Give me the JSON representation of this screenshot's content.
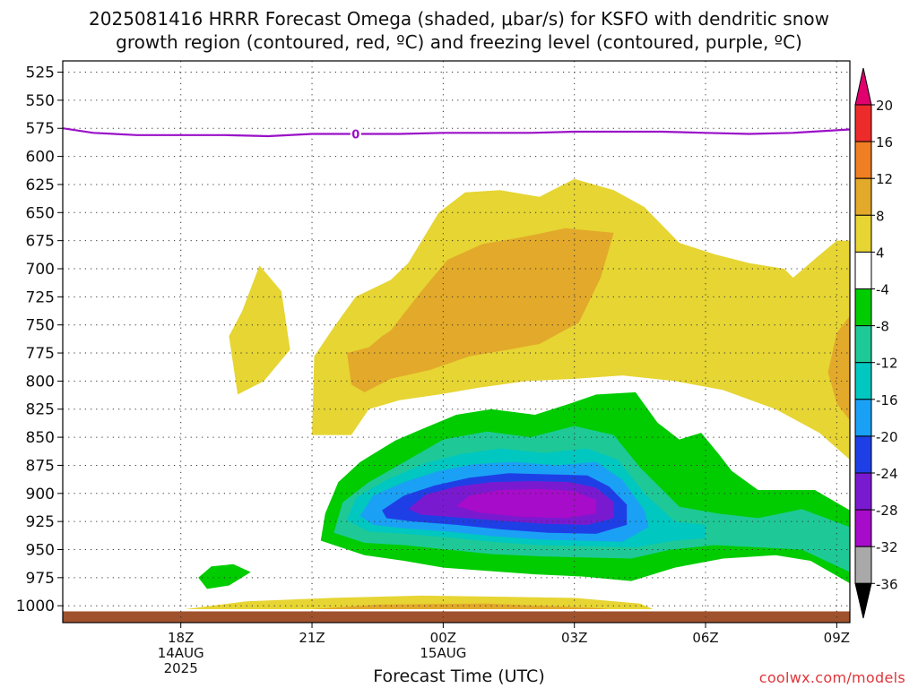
{
  "title": {
    "line1": "2025081416 HRRR Forecast Omega (shaded, μbar/s) for KSFO with dendritic snow",
    "line2": "growth region (contoured, red, ºC) and freezing level (contoured, purple, ºC)"
  },
  "credit": "coolwx.com/models",
  "chart_data": {
    "type": "heatmap",
    "xlabel": "Forecast Time (UTC)",
    "ylabel": "",
    "x_range_hours": [
      15.3,
      33.3
    ],
    "y_range_mb": [
      515,
      1015
    ],
    "y_ticks": [
      525,
      550,
      575,
      600,
      625,
      650,
      675,
      700,
      725,
      750,
      775,
      800,
      825,
      850,
      875,
      900,
      925,
      950,
      975,
      1000
    ],
    "x_ticks": [
      {
        "hour": 18,
        "lines": [
          "18Z",
          "14AUG",
          "2025"
        ]
      },
      {
        "hour": 21,
        "lines": [
          "21Z"
        ]
      },
      {
        "hour": 24,
        "lines": [
          "00Z",
          "15AUG"
        ]
      },
      {
        "hour": 27,
        "lines": [
          "03Z"
        ]
      },
      {
        "hour": 30,
        "lines": [
          "06Z"
        ]
      },
      {
        "hour": 33,
        "lines": [
          "09Z"
        ]
      }
    ],
    "grid": true,
    "colorbar": {
      "labels": [
        "20",
        "16",
        "12",
        "8",
        "4",
        "-4",
        "-8",
        "-12",
        "-16",
        "-20",
        "-24",
        "-28",
        "-32",
        "-36"
      ],
      "colors": [
        "#e0006e",
        "#ee2b2b",
        "#f07e22",
        "#e3a92a",
        "#e6d533",
        "#ffffff",
        "#00cc00",
        "#1ec997",
        "#00c7c0",
        "#1aa1f5",
        "#1f3fe6",
        "#7a1ad0",
        "#a60cc9",
        "#a9a9a9",
        "#000000"
      ]
    },
    "levels": [
      {
        "range": "4 to 8",
        "color": "#e6d533",
        "polygons": [
          [
            [
              19.8,
              697
            ],
            [
              20.3,
              720
            ],
            [
              20.5,
              772
            ],
            [
              19.9,
              800
            ],
            [
              19.3,
              812
            ],
            [
              19.1,
              760
            ],
            [
              19.4,
              738
            ]
          ],
          [
            [
              21.0,
              848
            ],
            [
              21.05,
              778
            ],
            [
              21.5,
              752
            ],
            [
              22.0,
              725
            ],
            [
              22.8,
              710
            ],
            [
              23.2,
              695
            ],
            [
              23.9,
              650
            ],
            [
              24.5,
              632
            ],
            [
              25.3,
              630
            ],
            [
              26.2,
              636
            ],
            [
              27.0,
              620
            ],
            [
              27.9,
              630
            ],
            [
              28.6,
              645
            ],
            [
              29.4,
              677
            ],
            [
              30.2,
              687
            ],
            [
              31.0,
              695
            ],
            [
              31.8,
              700
            ],
            [
              32.0,
              708
            ],
            [
              32.6,
              688
            ],
            [
              33.0,
              675
            ],
            [
              33.3,
              675
            ],
            [
              33.3,
              870
            ],
            [
              32.6,
              846
            ],
            [
              31.6,
              825
            ],
            [
              30.4,
              808
            ],
            [
              29.3,
              800
            ],
            [
              28.1,
              795
            ],
            [
              27.0,
              798
            ],
            [
              25.9,
              800
            ],
            [
              24.8,
              806
            ],
            [
              23.9,
              812
            ],
            [
              23.0,
              817
            ],
            [
              22.3,
              825
            ],
            [
              21.9,
              848
            ]
          ],
          [
            [
              18.1,
              1003
            ],
            [
              19.5,
              996
            ],
            [
              21.5,
              993
            ],
            [
              23.5,
              991
            ],
            [
              25.5,
              992
            ],
            [
              27.0,
              993
            ],
            [
              28.5,
              998
            ],
            [
              28.8,
              1003
            ]
          ]
        ]
      },
      {
        "range": "8 to 12",
        "color": "#e3a92a",
        "polygons": [
          [
            [
              21.9,
              803
            ],
            [
              21.8,
              775
            ],
            [
              22.3,
              770
            ],
            [
              22.6,
              760
            ],
            [
              22.8,
              755
            ],
            [
              23.5,
              720
            ],
            [
              24.1,
              692
            ],
            [
              24.9,
              678
            ],
            [
              25.8,
              672
            ],
            [
              26.8,
              664
            ],
            [
              27.9,
              668
            ],
            [
              27.6,
              708
            ],
            [
              27.1,
              748
            ],
            [
              26.2,
              767
            ],
            [
              25.5,
              772
            ],
            [
              24.6,
              778
            ],
            [
              23.7,
              790
            ],
            [
              22.8,
              798
            ],
            [
              22.2,
              810
            ]
          ],
          [
            [
              33.3,
              742
            ],
            [
              33.0,
              757
            ],
            [
              32.8,
              792
            ],
            [
              33.0,
              820
            ],
            [
              33.3,
              835
            ]
          ],
          [
            [
              21.0,
              1003
            ],
            [
              22.5,
              999
            ],
            [
              25.0,
              998
            ],
            [
              27.5,
              1002
            ],
            [
              27.8,
              1003
            ]
          ]
        ]
      },
      {
        "range": "-8 to -4",
        "color": "#00cc00",
        "polygons": [
          [
            [
              21.2,
              942
            ],
            [
              21.3,
              918
            ],
            [
              21.6,
              890
            ],
            [
              22.1,
              872
            ],
            [
              22.9,
              853
            ],
            [
              23.5,
              843
            ],
            [
              24.3,
              830
            ],
            [
              25.1,
              825
            ],
            [
              26.1,
              830
            ],
            [
              26.9,
              820
            ],
            [
              27.5,
              812
            ],
            [
              28.4,
              810
            ],
            [
              28.9,
              837
            ],
            [
              29.4,
              852
            ],
            [
              29.9,
              846
            ],
            [
              30.3,
              865
            ],
            [
              30.6,
              880
            ],
            [
              31.2,
              897
            ],
            [
              32.5,
              897
            ],
            [
              33.3,
              915
            ],
            [
              33.3,
              980
            ],
            [
              32.4,
              960
            ],
            [
              31.6,
              955
            ],
            [
              30.4,
              958
            ],
            [
              29.3,
              966
            ],
            [
              28.3,
              978
            ],
            [
              27.2,
              974
            ],
            [
              26.1,
              972
            ],
            [
              25.0,
              969
            ],
            [
              24.0,
              966
            ],
            [
              23.1,
              960
            ],
            [
              22.2,
              955
            ]
          ],
          [
            [
              18.6,
              985
            ],
            [
              19.1,
              982
            ],
            [
              19.6,
              970
            ],
            [
              19.2,
              963
            ],
            [
              18.7,
              965
            ],
            [
              18.4,
              975
            ]
          ]
        ]
      },
      {
        "range": "-12 to -8",
        "color": "#1ec997",
        "polygons": [
          [
            [
              21.5,
              935
            ],
            [
              21.7,
              908
            ],
            [
              22.3,
              890
            ],
            [
              23.2,
              870
            ],
            [
              24.0,
              852
            ],
            [
              25.0,
              845
            ],
            [
              26.0,
              850
            ],
            [
              27.0,
              840
            ],
            [
              27.9,
              848
            ],
            [
              28.5,
              877
            ],
            [
              29.4,
              912
            ],
            [
              30.3,
              918
            ],
            [
              31.2,
              922
            ],
            [
              32.2,
              914
            ],
            [
              33.3,
              930
            ],
            [
              33.3,
              970
            ],
            [
              32.2,
              950
            ],
            [
              31.2,
              948
            ],
            [
              30.2,
              946
            ],
            [
              29.2,
              950
            ],
            [
              28.3,
              958
            ],
            [
              27.2,
              957
            ],
            [
              26.2,
              956
            ],
            [
              25.1,
              954
            ],
            [
              24.1,
              950
            ],
            [
              23.1,
              946
            ],
            [
              22.2,
              944
            ]
          ]
        ]
      },
      {
        "range": "-16 to -12",
        "color": "#00c7c0",
        "polygons": [
          [
            [
              21.8,
              924
            ],
            [
              22.0,
              904
            ],
            [
              22.7,
              888
            ],
            [
              23.6,
              873
            ],
            [
              24.4,
              865
            ],
            [
              25.3,
              860
            ],
            [
              26.3,
              864
            ],
            [
              27.3,
              860
            ],
            [
              28.0,
              870
            ],
            [
              28.6,
              900
            ],
            [
              29.3,
              925
            ],
            [
              30.0,
              928
            ],
            [
              30.0,
              940
            ],
            [
              29.3,
              942
            ],
            [
              28.4,
              948
            ],
            [
              27.3,
              947
            ],
            [
              26.2,
              946
            ],
            [
              25.1,
              943
            ],
            [
              24.1,
              939
            ],
            [
              23.1,
              936
            ],
            [
              22.3,
              934
            ]
          ]
        ]
      },
      {
        "range": "-20 to -16",
        "color": "#1aa1f5",
        "polygons": [
          [
            [
              22.1,
              920
            ],
            [
              22.4,
              902
            ],
            [
              23.1,
              890
            ],
            [
              23.9,
              880
            ],
            [
              24.7,
              874
            ],
            [
              25.6,
              872
            ],
            [
              26.6,
              875
            ],
            [
              27.5,
              872
            ],
            [
              28.1,
              888
            ],
            [
              28.6,
              915
            ],
            [
              28.7,
              930
            ],
            [
              28.1,
              943
            ],
            [
              27.2,
              942
            ],
            [
              26.2,
              941
            ],
            [
              25.1,
              938
            ],
            [
              24.1,
              934
            ],
            [
              23.1,
              931
            ],
            [
              22.4,
              928
            ]
          ]
        ]
      },
      {
        "range": "-24 to -20",
        "color": "#1f3fe6",
        "polygons": [
          [
            [
              22.6,
              915
            ],
            [
              23.1,
              902
            ],
            [
              23.8,
              893
            ],
            [
              24.6,
              886
            ],
            [
              25.5,
              882
            ],
            [
              26.4,
              883
            ],
            [
              27.3,
              884
            ],
            [
              27.8,
              894
            ],
            [
              28.2,
              910
            ],
            [
              28.2,
              928
            ],
            [
              27.5,
              936
            ],
            [
              26.4,
              935
            ],
            [
              25.3,
              932
            ],
            [
              24.3,
              928
            ],
            [
              23.3,
              925
            ],
            [
              22.7,
              922
            ]
          ]
        ]
      },
      {
        "range": "-28 to -24",
        "color": "#7a1ad0",
        "polygons": [
          [
            [
              23.2,
              914
            ],
            [
              23.6,
              901
            ],
            [
              24.3,
              894
            ],
            [
              25.1,
              890
            ],
            [
              26.0,
              889
            ],
            [
              26.9,
              890
            ],
            [
              27.5,
              895
            ],
            [
              27.9,
              908
            ],
            [
              27.9,
              922
            ],
            [
              27.3,
              928
            ],
            [
              26.3,
              927
            ],
            [
              25.2,
              924
            ],
            [
              24.2,
              921
            ],
            [
              23.5,
              919
            ]
          ]
        ]
      },
      {
        "range": "-32 to -28",
        "color": "#a60cc9",
        "polygons": [
          [
            [
              24.3,
              911
            ],
            [
              24.6,
              902
            ],
            [
              25.3,
              897
            ],
            [
              26.2,
              896
            ],
            [
              27.0,
              898
            ],
            [
              27.5,
              906
            ],
            [
              27.5,
              918
            ],
            [
              26.8,
              922
            ],
            [
              25.8,
              921
            ],
            [
              24.8,
              917
            ]
          ]
        ]
      }
    ],
    "freezing_level": {
      "label": "0",
      "label_at": [
        22.0,
        580
      ],
      "points": [
        [
          15.3,
          575
        ],
        [
          16.0,
          579
        ],
        [
          17.0,
          581
        ],
        [
          18.0,
          581
        ],
        [
          19.0,
          581
        ],
        [
          20.0,
          582
        ],
        [
          21.0,
          580
        ],
        [
          22.0,
          580
        ],
        [
          23.0,
          580
        ],
        [
          24.0,
          579
        ],
        [
          25.0,
          579
        ],
        [
          26.0,
          579
        ],
        [
          27.0,
          578
        ],
        [
          28.0,
          578
        ],
        [
          29.0,
          578
        ],
        [
          30.0,
          579
        ],
        [
          31.0,
          580
        ],
        [
          32.0,
          579
        ],
        [
          33.3,
          576
        ]
      ]
    },
    "surface_band": {
      "color": "#a0522d",
      "pressure_top": 1005
    }
  }
}
